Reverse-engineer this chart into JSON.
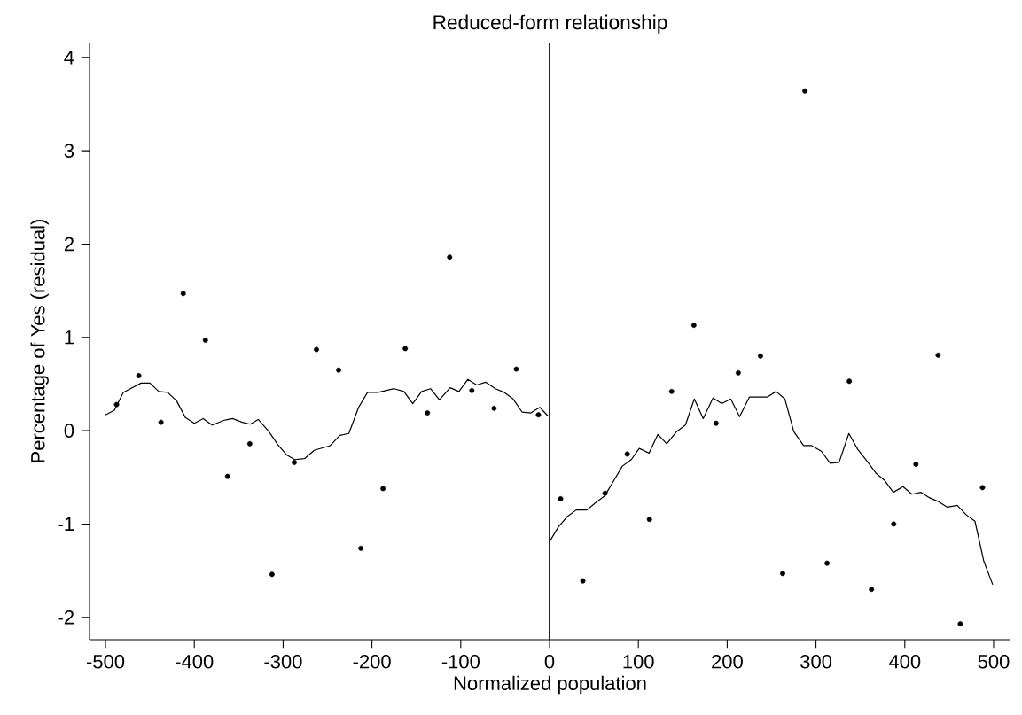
{
  "chart_data": {
    "type": "scatter",
    "title": "Reduced-form relationship",
    "xlabel": "Normalized population",
    "ylabel": "Percentage of Yes (residual)",
    "xlim": [
      -518,
      519
    ],
    "ylim": [
      -2.24,
      4.16
    ],
    "xticks": [
      -500,
      -400,
      -300,
      -200,
      -100,
      0,
      100,
      200,
      300,
      400,
      500
    ],
    "yticks": [
      -2,
      -1,
      0,
      1,
      2,
      3,
      4
    ],
    "grid": false,
    "ref_lines": [
      {
        "axis": "x",
        "value": 0,
        "color": "#000000"
      }
    ],
    "series": [
      {
        "marker": "circle",
        "color": "#000000",
        "x": [
          -487.5,
          -462.5,
          -437.5,
          -412.5,
          -387.5,
          -362.5,
          -337.5,
          -312.5,
          -287.5,
          -262.5,
          -237.5,
          -212.5,
          -187.5,
          -162.5,
          -137.5,
          -112.5,
          -87.5,
          -62.5,
          -37.5,
          -12.5,
          12.5,
          37.5,
          62.5,
          87.5,
          112.5,
          137.5,
          162.5,
          187.5,
          212.5,
          237.5,
          262.5,
          287.5,
          312.5,
          337.5,
          362.5,
          387.5,
          412.5,
          437.5,
          462.5,
          487.5
        ],
        "values": [
          0.28,
          0.59,
          0.09,
          1.47,
          0.97,
          -0.49,
          -0.14,
          -1.54,
          -0.34,
          0.87,
          0.65,
          -1.26,
          -0.62,
          0.88,
          0.19,
          1.86,
          0.43,
          0.24,
          0.66,
          0.17,
          -0.73,
          -1.61,
          -0.67,
          -0.25,
          -0.95,
          0.42,
          1.13,
          0.08,
          0.62,
          0.8,
          -1.53,
          3.64,
          -1.42,
          0.53,
          -1.7,
          -1.0,
          -0.36,
          0.81,
          -2.07,
          -0.61
        ]
      },
      {
        "type": "line",
        "marker": "none",
        "line_style": "solid",
        "color": "#000000",
        "x": [
          -500,
          -490,
          -480,
          -460,
          -450,
          -440,
          -430,
          -420,
          -410,
          -400,
          -390,
          -380,
          -367,
          -357,
          -346,
          -337,
          -328,
          -316,
          -306,
          -296,
          -287,
          -276,
          -265,
          -247,
          -236,
          -226,
          -215,
          -205,
          -193,
          -175,
          -164,
          -154,
          -144,
          -134,
          -124,
          -112,
          -102,
          -92,
          -82,
          -72,
          -61,
          -51,
          -41,
          -31,
          -21,
          -11,
          -2
        ],
        "values": [
          0.17,
          0.22,
          0.41,
          0.51,
          0.51,
          0.42,
          0.41,
          0.32,
          0.14,
          0.08,
          0.13,
          0.06,
          0.11,
          0.13,
          0.09,
          0.07,
          0.12,
          -0.01,
          -0.15,
          -0.26,
          -0.31,
          -0.3,
          -0.21,
          -0.16,
          -0.05,
          -0.03,
          0.25,
          0.41,
          0.41,
          0.45,
          0.42,
          0.29,
          0.42,
          0.45,
          0.33,
          0.46,
          0.42,
          0.55,
          0.49,
          0.52,
          0.45,
          0.41,
          0.34,
          0.2,
          0.19,
          0.25,
          0.16
        ]
      },
      {
        "type": "line",
        "marker": "none",
        "line_style": "solid",
        "color": "#000000",
        "x": [
          0,
          10,
          20,
          30,
          42,
          52,
          62,
          72,
          82,
          92,
          101,
          112,
          122,
          132,
          143,
          153,
          163,
          173,
          184,
          194,
          204,
          214,
          225,
          245,
          255,
          265,
          275,
          286,
          295,
          306,
          316,
          326,
          337,
          347,
          357,
          368,
          377,
          387,
          398,
          408,
          418,
          428,
          438,
          448,
          459,
          469,
          479,
          489,
          499
        ],
        "values": [
          -1.19,
          -1.03,
          -0.92,
          -0.85,
          -0.85,
          -0.77,
          -0.7,
          -0.54,
          -0.38,
          -0.31,
          -0.19,
          -0.24,
          -0.04,
          -0.14,
          -0.01,
          0.06,
          0.34,
          0.13,
          0.35,
          0.29,
          0.34,
          0.15,
          0.36,
          0.36,
          0.42,
          0.34,
          -0.01,
          -0.16,
          -0.16,
          -0.22,
          -0.35,
          -0.34,
          -0.03,
          -0.2,
          -0.32,
          -0.46,
          -0.53,
          -0.66,
          -0.6,
          -0.68,
          -0.66,
          -0.72,
          -0.76,
          -0.82,
          -0.8,
          -0.9,
          -0.97,
          -1.4,
          -1.65
        ]
      }
    ]
  }
}
